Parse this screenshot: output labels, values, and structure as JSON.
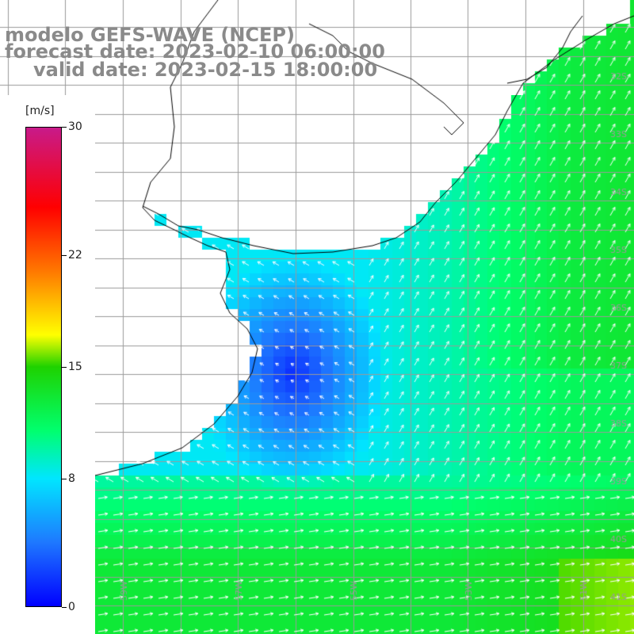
{
  "title": {
    "model": "modelo GEFS-WAVE (NCEP)",
    "forecast_date": "forecast date: 2023-02-10 06:00:00",
    "valid_date": "valid date: 2023-02-15 18:00:00"
  },
  "colorbar": {
    "unit": "[m/s]",
    "ticks": [
      "30",
      "22",
      "15",
      "8",
      "0"
    ],
    "tick_values": [
      30,
      22,
      15,
      8,
      0
    ],
    "range": [
      0,
      30
    ],
    "colors": [
      "#0000ff",
      "#1e78ff",
      "#00e6ff",
      "#00ff66",
      "#22cc00",
      "#ffff00",
      "#ff8000",
      "#ff0000",
      "#c81a8a"
    ]
  },
  "map": {
    "lon_range": [
      -62,
      -51
    ],
    "lat_range": [
      -41.5,
      -31.5
    ],
    "lat_labels": [
      "32S",
      "33S",
      "34S",
      "35S",
      "36S",
      "37S",
      "38S",
      "39S",
      "40S",
      "41S"
    ],
    "lon_labels": [
      "61W",
      "59W",
      "57W",
      "55W",
      "53W",
      "51W"
    ],
    "colors": {
      "land": "#ffffff",
      "coastline": "#000000",
      "grid": "#9a9a9a",
      "arrows": "#ffffff",
      "title_text": "#8a8a8a"
    }
  },
  "field": {
    "variable": "wind speed",
    "min": 0,
    "max": 30,
    "north_shore_speed": 8.5,
    "south_shore_speed": 9.5,
    "plata_estuary_speed": 2
  }
}
